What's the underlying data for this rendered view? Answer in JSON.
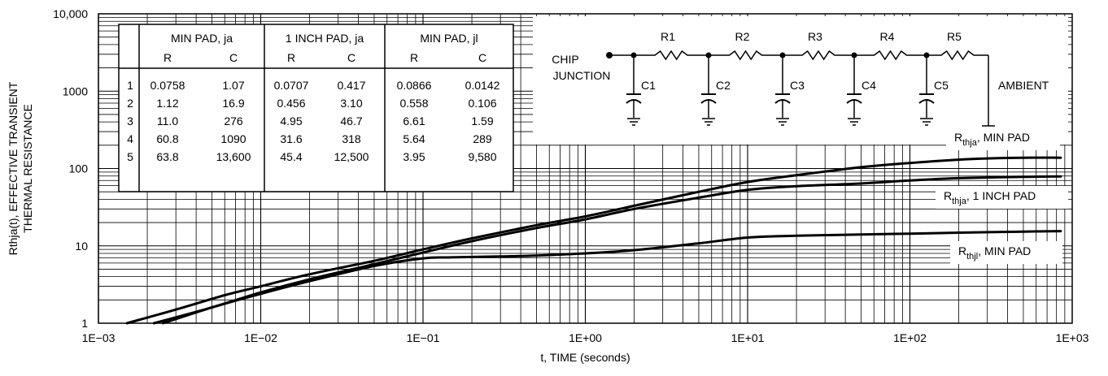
{
  "chart_data": {
    "type": "line",
    "title": "",
    "xlabel": "t, TIME (seconds)",
    "ylabel_lines": [
      "Rthja(t), EFFECTIVE TRANSIENT",
      "THERMAL RESISTANCE"
    ],
    "x_scale": "log",
    "y_scale": "log",
    "xlim": [
      0.001,
      1000
    ],
    "ylim": [
      1,
      10000
    ],
    "grid": true,
    "x_ticks": [
      "1E−03",
      "1E−02",
      "1E−01",
      "1E+00",
      "1E+01",
      "1E+02",
      "1E+03"
    ],
    "y_ticks": [
      "1",
      "10",
      "100",
      "1000",
      "10,000"
    ],
    "series": [
      {
        "name": "Rthja, MIN PAD",
        "label_main": "R",
        "label_sub": "thja",
        "label_rest": ", MIN PAD",
        "x": [
          0.0015,
          0.003,
          0.006,
          0.01,
          0.02,
          0.05,
          0.1,
          0.2,
          0.5,
          1,
          2,
          5,
          10,
          20,
          50,
          100,
          200,
          300,
          500,
          850
        ],
        "y": [
          1,
          1.5,
          2.3,
          3,
          4.3,
          6.4,
          9,
          12.5,
          18.5,
          24,
          33,
          50,
          67,
          82,
          104,
          118,
          130,
          135,
          138,
          138
        ]
      },
      {
        "name": "Rthja, 1 INCH PAD",
        "label_main": "R",
        "label_sub": "thja",
        "label_rest": ", 1 INCH PAD",
        "x": [
          0.0022,
          0.005,
          0.01,
          0.02,
          0.05,
          0.1,
          0.2,
          0.5,
          1,
          2,
          5,
          10,
          20,
          50,
          100,
          200,
          500,
          850
        ],
        "y": [
          1,
          1.6,
          2.5,
          3.7,
          5.8,
          8.2,
          11.5,
          17,
          22,
          30,
          42,
          53,
          59,
          64,
          70,
          75,
          78,
          79
        ]
      },
      {
        "name": "Rthjl, MIN PAD",
        "label_main": "R",
        "label_sub": "thjl",
        "label_rest": ", MIN PAD",
        "x": [
          0.0025,
          0.005,
          0.01,
          0.02,
          0.05,
          0.1,
          0.15,
          0.3,
          0.5,
          1,
          2,
          5,
          10,
          20,
          50,
          100,
          200,
          500,
          850
        ],
        "y": [
          1,
          1.6,
          2.4,
          3.5,
          5.5,
          6.9,
          7.1,
          7.3,
          7.5,
          8,
          8.8,
          10.8,
          12.8,
          13.5,
          14,
          14.4,
          14.8,
          15.3,
          15.5
        ]
      }
    ],
    "table": {
      "groups": [
        "MIN PAD, ja",
        "1 INCH PAD, ja",
        "MIN PAD, jl"
      ],
      "subheaders": [
        "R",
        "C",
        "R",
        "C",
        "R",
        "C"
      ],
      "rows": [
        [
          "1",
          "0.0758",
          "1.07",
          "0.0707",
          "0.417",
          "0.0866",
          "0.0142"
        ],
        [
          "2",
          "1.12",
          "16.9",
          "0.456",
          "3.10",
          "0.558",
          "0.106"
        ],
        [
          "3",
          "11.0",
          "276",
          "4.95",
          "46.7",
          "6.61",
          "1.59"
        ],
        [
          "4",
          "60.8",
          "1090",
          "31.6",
          "318",
          "5.64",
          "289"
        ],
        [
          "5",
          "63.8",
          "13,600",
          "45.4",
          "12,500",
          "3.95",
          "9,580"
        ]
      ]
    },
    "circuit": {
      "left_label_lines": [
        "CHIP",
        "JUNCTION"
      ],
      "right_label": "AMBIENT",
      "resistors": [
        "R1",
        "R2",
        "R3",
        "R4",
        "R5"
      ],
      "capacitors": [
        "C1",
        "C2",
        "C3",
        "C4",
        "C5"
      ]
    }
  }
}
